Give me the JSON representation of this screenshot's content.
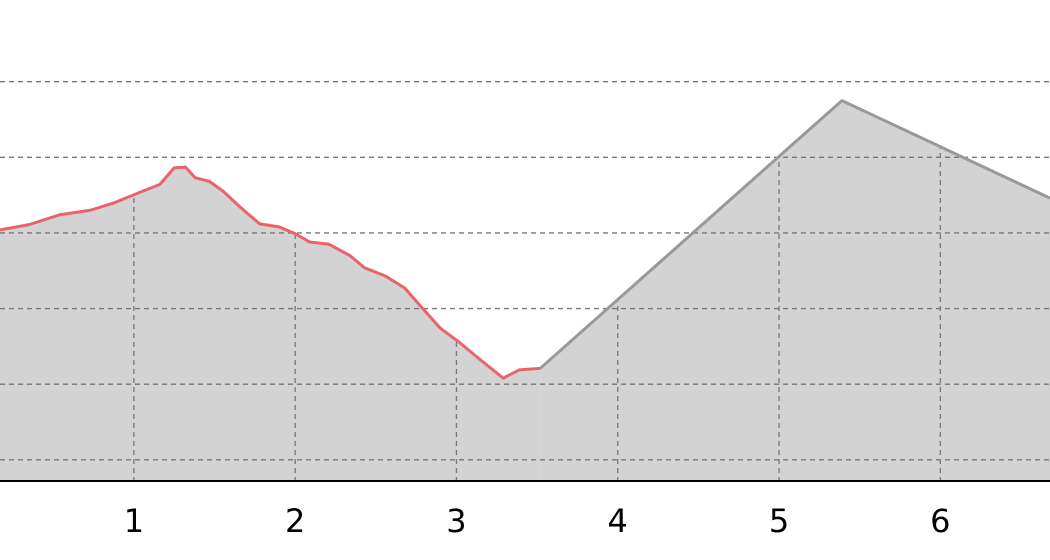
{
  "chart_data": {
    "type": "area-line",
    "xlim": [
      0.17,
      6.68
    ],
    "xticks": [
      1,
      2,
      3,
      4,
      5,
      6
    ],
    "ylim": [
      0.72,
      7.08
    ],
    "yticks": [
      1,
      2,
      3,
      4,
      5,
      6
    ],
    "grid": true,
    "fill": "#d3d3d3",
    "series": [
      {
        "color": "#e8646a",
        "x": [
          0.17,
          0.35,
          0.54,
          0.73,
          0.88,
          1.04,
          1.16,
          1.25,
          1.32,
          1.38,
          1.47,
          1.56,
          1.66,
          1.78,
          1.9,
          2.0,
          2.09,
          2.21,
          2.34,
          2.43,
          2.56,
          2.68,
          2.77,
          2.9,
          3.02,
          3.15,
          3.29,
          3.39,
          3.52
        ],
        "values": [
          4.04,
          4.11,
          4.24,
          4.3,
          4.4,
          4.54,
          4.64,
          4.86,
          4.87,
          4.73,
          4.68,
          4.54,
          4.34,
          4.12,
          4.08,
          3.99,
          3.88,
          3.85,
          3.7,
          3.54,
          3.43,
          3.27,
          3.05,
          2.74,
          2.55,
          2.32,
          2.08,
          2.19,
          2.21
        ]
      },
      {
        "color": "#999999",
        "x": [
          3.52,
          5.39,
          6.68
        ],
        "values": [
          2.21,
          5.75,
          4.46
        ]
      }
    ]
  }
}
